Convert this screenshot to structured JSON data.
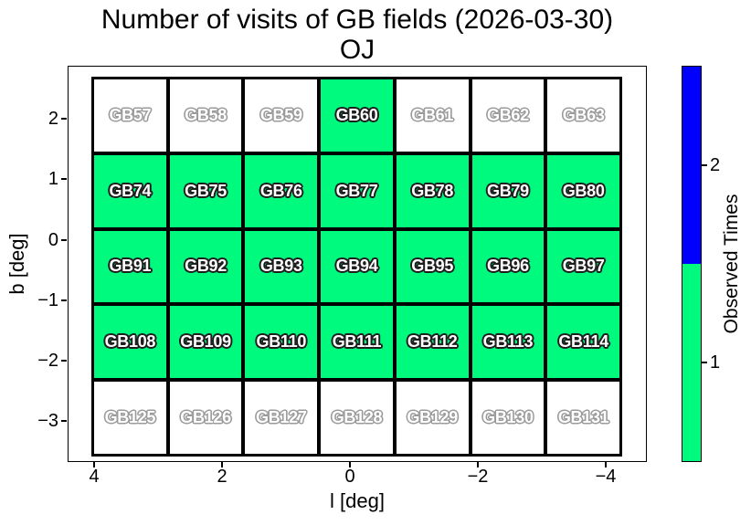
{
  "figure": {
    "title_line1": "Number of visits of GB fields (2026-03-30)",
    "title_line2": "OJ"
  },
  "axes": {
    "xlabel": "l [deg]",
    "ylabel": "b [deg]",
    "x_ticks": [
      "4",
      "2",
      "0",
      "−2",
      "−4"
    ],
    "y_ticks": [
      "2",
      "1",
      "0",
      "−1",
      "−2",
      "−3"
    ]
  },
  "grid": {
    "rows": 5,
    "cols": 7,
    "cells": [
      {
        "label": "GB57",
        "visits": 0
      },
      {
        "label": "GB58",
        "visits": 0
      },
      {
        "label": "GB59",
        "visits": 0
      },
      {
        "label": "GB60",
        "visits": 1
      },
      {
        "label": "GB61",
        "visits": 0
      },
      {
        "label": "GB62",
        "visits": 0
      },
      {
        "label": "GB63",
        "visits": 0
      },
      {
        "label": "GB74",
        "visits": 1
      },
      {
        "label": "GB75",
        "visits": 1
      },
      {
        "label": "GB76",
        "visits": 1
      },
      {
        "label": "GB77",
        "visits": 1
      },
      {
        "label": "GB78",
        "visits": 1
      },
      {
        "label": "GB79",
        "visits": 1
      },
      {
        "label": "GB80",
        "visits": 1
      },
      {
        "label": "GB91",
        "visits": 1
      },
      {
        "label": "GB92",
        "visits": 1
      },
      {
        "label": "GB93",
        "visits": 1
      },
      {
        "label": "GB94",
        "visits": 1
      },
      {
        "label": "GB95",
        "visits": 1
      },
      {
        "label": "GB96",
        "visits": 1
      },
      {
        "label": "GB97",
        "visits": 1
      },
      {
        "label": "GB108",
        "visits": 1
      },
      {
        "label": "GB109",
        "visits": 1
      },
      {
        "label": "GB110",
        "visits": 1
      },
      {
        "label": "GB111",
        "visits": 1
      },
      {
        "label": "GB112",
        "visits": 1
      },
      {
        "label": "GB113",
        "visits": 1
      },
      {
        "label": "GB114",
        "visits": 1
      },
      {
        "label": "GB125",
        "visits": 0
      },
      {
        "label": "GB126",
        "visits": 0
      },
      {
        "label": "GB127",
        "visits": 0
      },
      {
        "label": "GB128",
        "visits": 0
      },
      {
        "label": "GB129",
        "visits": 0
      },
      {
        "label": "GB130",
        "visits": 0
      },
      {
        "label": "GB131",
        "visits": 0
      }
    ]
  },
  "colorbar": {
    "label": "Observed Times",
    "tick_labels_top_to_bottom": [
      "2",
      "1"
    ],
    "color_1_visit": "#00FA7D",
    "color_2_visits": "#0000FF",
    "color_0_visits": "#FFFFFF",
    "border_color": "#000000"
  },
  "chart_data": {
    "type": "heatmap",
    "title": "Number of visits of GB fields (2026-03-30)",
    "subtitle": "OJ",
    "xlabel": "l [deg]",
    "ylabel": "b [deg]",
    "x_tick_values": [
      4,
      2,
      0,
      -2,
      -4
    ],
    "y_tick_values": [
      2,
      1,
      0,
      -1,
      -2,
      -3
    ],
    "x_axis_inverted": true,
    "xlim": [
      4.4,
      -4.6
    ],
    "ylim": [
      -3.7,
      2.9
    ],
    "grid_on": false,
    "column_l_centers_approx": [
      3.4,
      2.2,
      1.1,
      -0.1,
      -1.3,
      -2.5,
      -3.7
    ],
    "row_b_centers_approx": [
      2.0,
      0.8,
      -0.4,
      -1.7,
      -2.9
    ],
    "rows": [
      {
        "fields": [
          "GB57",
          "GB58",
          "GB59",
          "GB60",
          "GB61",
          "GB62",
          "GB63"
        ],
        "visits": [
          0,
          0,
          0,
          1,
          0,
          0,
          0
        ]
      },
      {
        "fields": [
          "GB74",
          "GB75",
          "GB76",
          "GB77",
          "GB78",
          "GB79",
          "GB80"
        ],
        "visits": [
          1,
          1,
          1,
          1,
          1,
          1,
          1
        ]
      },
      {
        "fields": [
          "GB91",
          "GB92",
          "GB93",
          "GB94",
          "GB95",
          "GB96",
          "GB97"
        ],
        "visits": [
          1,
          1,
          1,
          1,
          1,
          1,
          1
        ]
      },
      {
        "fields": [
          "GB108",
          "GB109",
          "GB110",
          "GB111",
          "GB112",
          "GB113",
          "GB114"
        ],
        "visits": [
          1,
          1,
          1,
          1,
          1,
          1,
          1
        ]
      },
      {
        "fields": [
          "GB125",
          "GB126",
          "GB127",
          "GB128",
          "GB129",
          "GB130",
          "GB131"
        ],
        "visits": [
          0,
          0,
          0,
          0,
          0,
          0,
          0
        ]
      }
    ],
    "colorbar": {
      "label": "Observed Times",
      "ticks": [
        1,
        2
      ],
      "segment_colors": {
        "1": "#00FA7D",
        "2": "#0000FF"
      },
      "position": "right"
    }
  }
}
